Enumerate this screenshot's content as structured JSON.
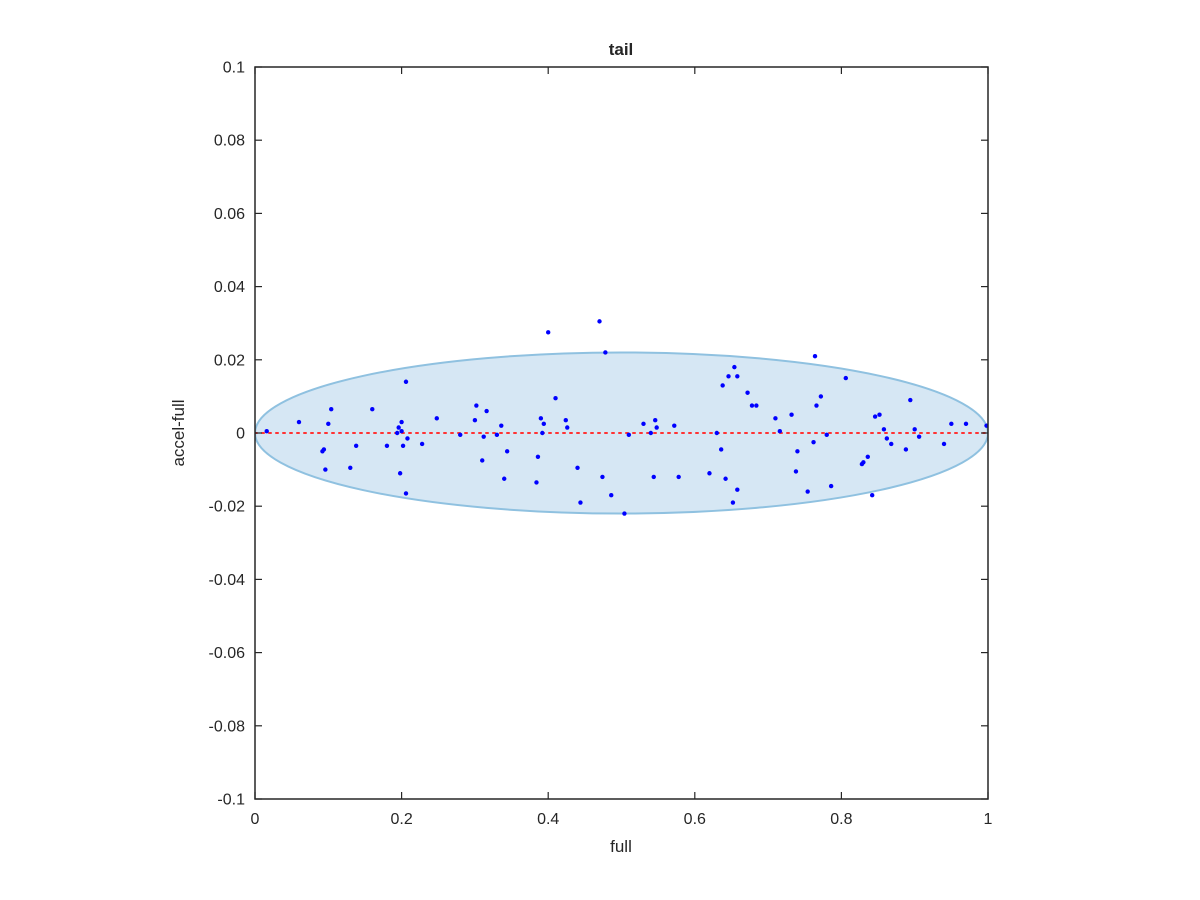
{
  "chart_data": {
    "type": "scatter",
    "title": "tail",
    "xlabel": "full",
    "ylabel": "accel-full",
    "xlim": [
      0,
      1
    ],
    "ylim": [
      -0.1,
      0.1
    ],
    "grid": false,
    "legend": "none",
    "x_ticks": [
      0,
      0.2,
      0.4,
      0.6,
      0.8,
      1
    ],
    "x_tick_labels": [
      "0",
      "0.2",
      "0.4",
      "0.6",
      "0.8",
      "1"
    ],
    "y_ticks": [
      -0.1,
      -0.08,
      -0.06,
      -0.04,
      -0.02,
      0,
      0.02,
      0.04,
      0.06,
      0.08,
      0.1
    ],
    "y_tick_labels": [
      "-0.1",
      "-0.08",
      "-0.06",
      "-0.04",
      "-0.02",
      "0",
      "0.02",
      "0.04",
      "0.06",
      "0.08",
      "0.1"
    ],
    "colors": {
      "points": "#0000ff",
      "zero_line": "#ff3333",
      "ellipse_fill": "#d6e7f4",
      "ellipse_stroke": "#8fc1e0",
      "axes": "#262626"
    },
    "reference_line": {
      "y": 0,
      "x_from": 0,
      "x_to": 1,
      "style": "dotted"
    },
    "ellipse": {
      "cx": 0.5,
      "cy": 0,
      "rx": 0.5,
      "ry": 0.022
    },
    "points": [
      [
        0.016,
        0.0005
      ],
      [
        0.06,
        0.003
      ],
      [
        0.092,
        -0.005
      ],
      [
        0.094,
        -0.0045
      ],
      [
        0.096,
        -0.01
      ],
      [
        0.1,
        0.0025
      ],
      [
        0.104,
        0.0065
      ],
      [
        0.13,
        -0.0095
      ],
      [
        0.138,
        -0.0035
      ],
      [
        0.16,
        0.0065
      ],
      [
        0.18,
        -0.0035
      ],
      [
        0.194,
        0.0
      ],
      [
        0.196,
        0.0015
      ],
      [
        0.198,
        -0.011
      ],
      [
        0.2,
        0.003
      ],
      [
        0.2,
        0.0005
      ],
      [
        0.202,
        -0.0035
      ],
      [
        0.206,
        -0.0165
      ],
      [
        0.206,
        0.014
      ],
      [
        0.208,
        -0.0015
      ],
      [
        0.228,
        -0.003
      ],
      [
        0.248,
        0.004
      ],
      [
        0.28,
        -0.0005
      ],
      [
        0.3,
        0.0035
      ],
      [
        0.302,
        0.0075
      ],
      [
        0.31,
        -0.0075
      ],
      [
        0.312,
        -0.001
      ],
      [
        0.316,
        0.006
      ],
      [
        0.33,
        -0.0005
      ],
      [
        0.336,
        0.002
      ],
      [
        0.34,
        -0.0125
      ],
      [
        0.344,
        -0.005
      ],
      [
        0.384,
        -0.0135
      ],
      [
        0.386,
        -0.0065
      ],
      [
        0.39,
        0.004
      ],
      [
        0.392,
        0.0
      ],
      [
        0.394,
        0.0025
      ],
      [
        0.4,
        0.0275
      ],
      [
        0.41,
        0.0095
      ],
      [
        0.424,
        0.0035
      ],
      [
        0.426,
        0.0015
      ],
      [
        0.44,
        -0.0095
      ],
      [
        0.444,
        -0.019
      ],
      [
        0.47,
        0.0305
      ],
      [
        0.474,
        -0.012
      ],
      [
        0.478,
        0.022
      ],
      [
        0.486,
        -0.017
      ],
      [
        0.504,
        -0.022
      ],
      [
        0.51,
        -0.0005
      ],
      [
        0.53,
        0.0025
      ],
      [
        0.54,
        0.0
      ],
      [
        0.544,
        -0.012
      ],
      [
        0.546,
        0.0035
      ],
      [
        0.548,
        0.0015
      ],
      [
        0.572,
        0.002
      ],
      [
        0.578,
        -0.012
      ],
      [
        0.62,
        -0.011
      ],
      [
        0.63,
        0.0
      ],
      [
        0.636,
        -0.0045
      ],
      [
        0.638,
        0.013
      ],
      [
        0.642,
        -0.0125
      ],
      [
        0.646,
        0.0155
      ],
      [
        0.652,
        -0.019
      ],
      [
        0.654,
        0.018
      ],
      [
        0.658,
        0.0155
      ],
      [
        0.658,
        -0.0155
      ],
      [
        0.672,
        0.011
      ],
      [
        0.678,
        0.0075
      ],
      [
        0.684,
        0.0075
      ],
      [
        0.71,
        0.004
      ],
      [
        0.716,
        0.0005
      ],
      [
        0.732,
        0.005
      ],
      [
        0.738,
        -0.0105
      ],
      [
        0.74,
        -0.005
      ],
      [
        0.754,
        -0.016
      ],
      [
        0.762,
        -0.0025
      ],
      [
        0.764,
        0.021
      ],
      [
        0.766,
        0.0075
      ],
      [
        0.772,
        0.01
      ],
      [
        0.78,
        -0.0005
      ],
      [
        0.786,
        -0.0145
      ],
      [
        0.806,
        0.015
      ],
      [
        0.828,
        -0.0085
      ],
      [
        0.83,
        -0.008
      ],
      [
        0.836,
        -0.0065
      ],
      [
        0.842,
        -0.017
      ],
      [
        0.846,
        0.0045
      ],
      [
        0.852,
        0.005
      ],
      [
        0.858,
        0.001
      ],
      [
        0.862,
        -0.0015
      ],
      [
        0.868,
        -0.003
      ],
      [
        0.888,
        -0.0045
      ],
      [
        0.894,
        0.009
      ],
      [
        0.9,
        0.001
      ],
      [
        0.906,
        -0.001
      ],
      [
        0.94,
        -0.003
      ],
      [
        0.95,
        0.0025
      ],
      [
        0.97,
        0.0025
      ],
      [
        0.998,
        0.002
      ]
    ]
  }
}
